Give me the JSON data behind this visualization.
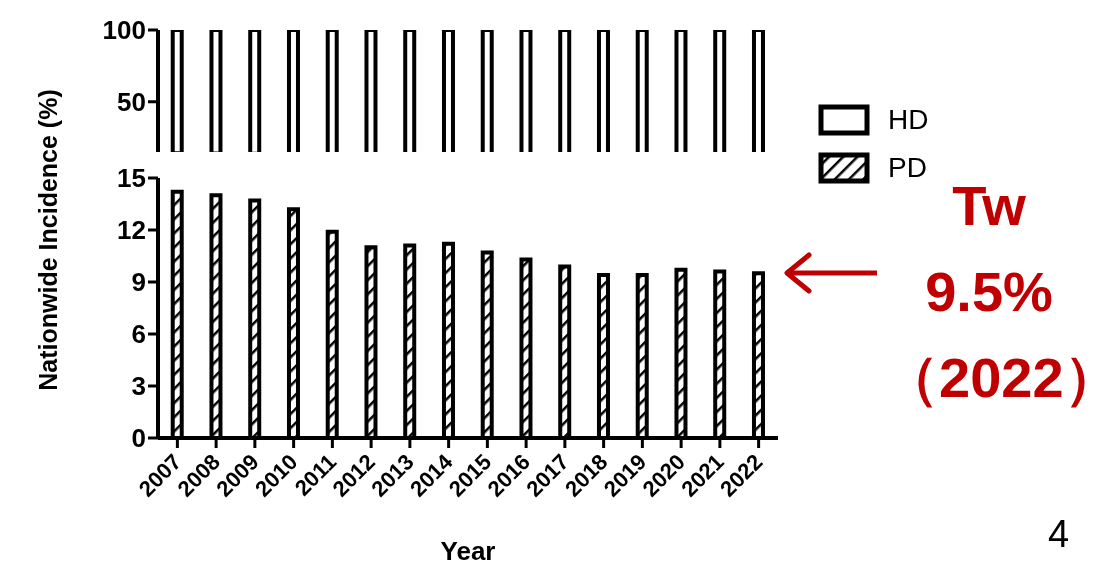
{
  "chart_data": [
    {
      "type": "bar",
      "categories": [
        "2007",
        "2008",
        "2009",
        "2010",
        "2011",
        "2012",
        "2013",
        "2014",
        "2015",
        "2016",
        "2017",
        "2018",
        "2019",
        "2020",
        "2021",
        "2022"
      ],
      "values": [
        85.8,
        86.0,
        86.3,
        86.8,
        88.1,
        89.0,
        88.9,
        88.8,
        89.3,
        89.7,
        90.1,
        90.6,
        90.6,
        90.3,
        90.4,
        90.5
      ],
      "base": [
        14.2,
        14.0,
        13.7,
        13.2,
        11.9,
        11.0,
        11.1,
        11.2,
        10.7,
        10.3,
        9.9,
        9.4,
        9.4,
        9.7,
        9.6,
        9.5
      ],
      "color": "#ffffff",
      "ylim": [
        15,
        100
      ],
      "yticks": [
        50,
        100
      ],
      "tick_labels": "y"
    },
    {
      "type": "bar",
      "stacked": true,
      "categories": [
        "2007",
        "2008",
        "2009",
        "2010",
        "2011",
        "2012",
        "2013",
        "2014",
        "2015",
        "2016",
        "2017",
        "2018",
        "2019",
        "2020",
        "2021",
        "2022"
      ],
      "series": [
        {
          "name": "PD",
          "color": "#000000",
          "values": [
            14.2,
            14.0,
            13.7,
            13.2,
            11.9,
            11.0,
            11.1,
            11.2,
            10.7,
            10.3,
            9.9,
            9.4,
            9.4,
            9.7,
            9.6,
            9.5
          ]
        },
        {
          "name": "HD",
          "color": "#ffffff",
          "values": [
            null,
            null,
            null,
            null,
            null,
            null,
            null,
            null,
            null,
            null,
            null,
            null,
            null,
            null,
            null,
            null
          ]
        }
      ],
      "ylim": [
        0,
        15
      ],
      "yticks": [
        0,
        3,
        6,
        9,
        12,
        15
      ],
      "xlabel": "Year",
      "ylabel": "Nationwide Incidence (%)",
      "legend": "right",
      "annotations": [
        {
          "text": "Tw\n9.5%\n（2022）",
          "x": "2022",
          "y": 9.5
        },
        "4"
      ]
    }
  ]
}
